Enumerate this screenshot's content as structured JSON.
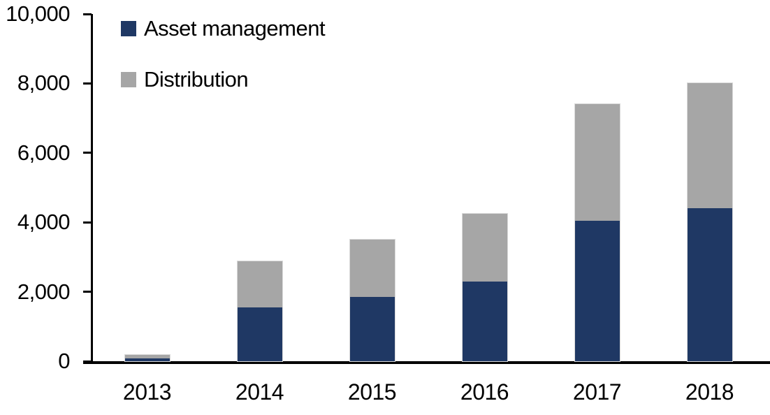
{
  "chart_data": {
    "type": "bar",
    "stacked": true,
    "title": "",
    "categories": [
      "2013",
      "2014",
      "2015",
      "2016",
      "2017",
      "2018"
    ],
    "series": [
      {
        "name": "Asset management",
        "color": "#1f3864",
        "values": [
          90,
          1550,
          1850,
          2300,
          4050,
          4400
        ]
      },
      {
        "name": "Distribution",
        "color": "#a6a6a6",
        "values": [
          90,
          1320,
          1650,
          1950,
          3350,
          3600
        ]
      }
    ],
    "totals": [
      180,
      2870,
      3500,
      4250,
      7400,
      8000
    ],
    "ylim": [
      0,
      10000
    ],
    "yticks": [
      {
        "v": 0,
        "label": "0"
      },
      {
        "v": 2000,
        "label": "2,000"
      },
      {
        "v": 4000,
        "label": "4,000"
      },
      {
        "v": 6000,
        "label": "6,000"
      },
      {
        "v": 8000,
        "label": "8,000"
      },
      {
        "v": 10000,
        "label": "10,000"
      }
    ],
    "xlabel": "",
    "ylabel": "",
    "grid": false,
    "legend_position": "top-left",
    "axis_color": "#000000",
    "background_color": "#ffffff"
  }
}
